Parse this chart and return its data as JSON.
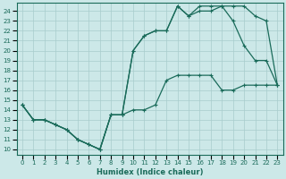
{
  "xlabel": "Humidex (Indice chaleur)",
  "bg_color": "#cce8e8",
  "grid_color": "#a8cccc",
  "line_color": "#1a6b5a",
  "xlim": [
    -0.5,
    23.5
  ],
  "ylim": [
    9.5,
    24.8
  ],
  "xticks": [
    0,
    1,
    2,
    3,
    4,
    5,
    6,
    7,
    8,
    9,
    10,
    11,
    12,
    13,
    14,
    15,
    16,
    17,
    18,
    19,
    20,
    21,
    22,
    23
  ],
  "yticks": [
    10,
    11,
    12,
    13,
    14,
    15,
    16,
    17,
    18,
    19,
    20,
    21,
    22,
    23,
    24
  ],
  "line1_x": [
    0,
    1,
    2,
    3,
    4,
    5,
    6,
    7,
    8,
    9,
    10,
    11,
    12,
    13,
    14,
    15,
    16,
    17,
    18,
    19,
    20,
    21,
    22,
    23
  ],
  "line1_y": [
    14.5,
    13.0,
    13.0,
    12.5,
    12.0,
    11.0,
    10.5,
    10.0,
    13.5,
    13.5,
    14.0,
    14.0,
    14.5,
    17.0,
    17.5,
    17.5,
    17.5,
    17.5,
    16.0,
    16.0,
    16.5,
    16.5,
    16.5,
    16.5
  ],
  "line2_x": [
    0,
    1,
    2,
    3,
    4,
    5,
    6,
    7,
    8,
    9,
    10,
    11,
    12,
    13,
    14,
    15,
    16,
    17,
    18,
    19,
    20,
    21,
    22,
    23
  ],
  "line2_y": [
    14.5,
    13.0,
    13.0,
    12.5,
    12.0,
    11.0,
    10.5,
    10.0,
    13.5,
    13.5,
    20.0,
    21.5,
    22.0,
    22.0,
    24.5,
    23.5,
    24.0,
    24.0,
    24.5,
    23.0,
    20.5,
    19.0,
    19.0,
    16.5
  ],
  "line3_x": [
    0,
    1,
    2,
    3,
    4,
    5,
    6,
    7,
    8,
    9,
    10,
    11,
    12,
    13,
    14,
    15,
    16,
    17,
    18,
    19,
    20,
    21,
    22,
    23
  ],
  "line3_y": [
    14.5,
    13.0,
    13.0,
    12.5,
    12.0,
    11.0,
    10.5,
    10.0,
    13.5,
    13.5,
    20.0,
    21.5,
    22.0,
    22.0,
    24.5,
    23.5,
    24.5,
    24.5,
    24.5,
    24.5,
    24.5,
    23.5,
    23.0,
    16.5
  ]
}
